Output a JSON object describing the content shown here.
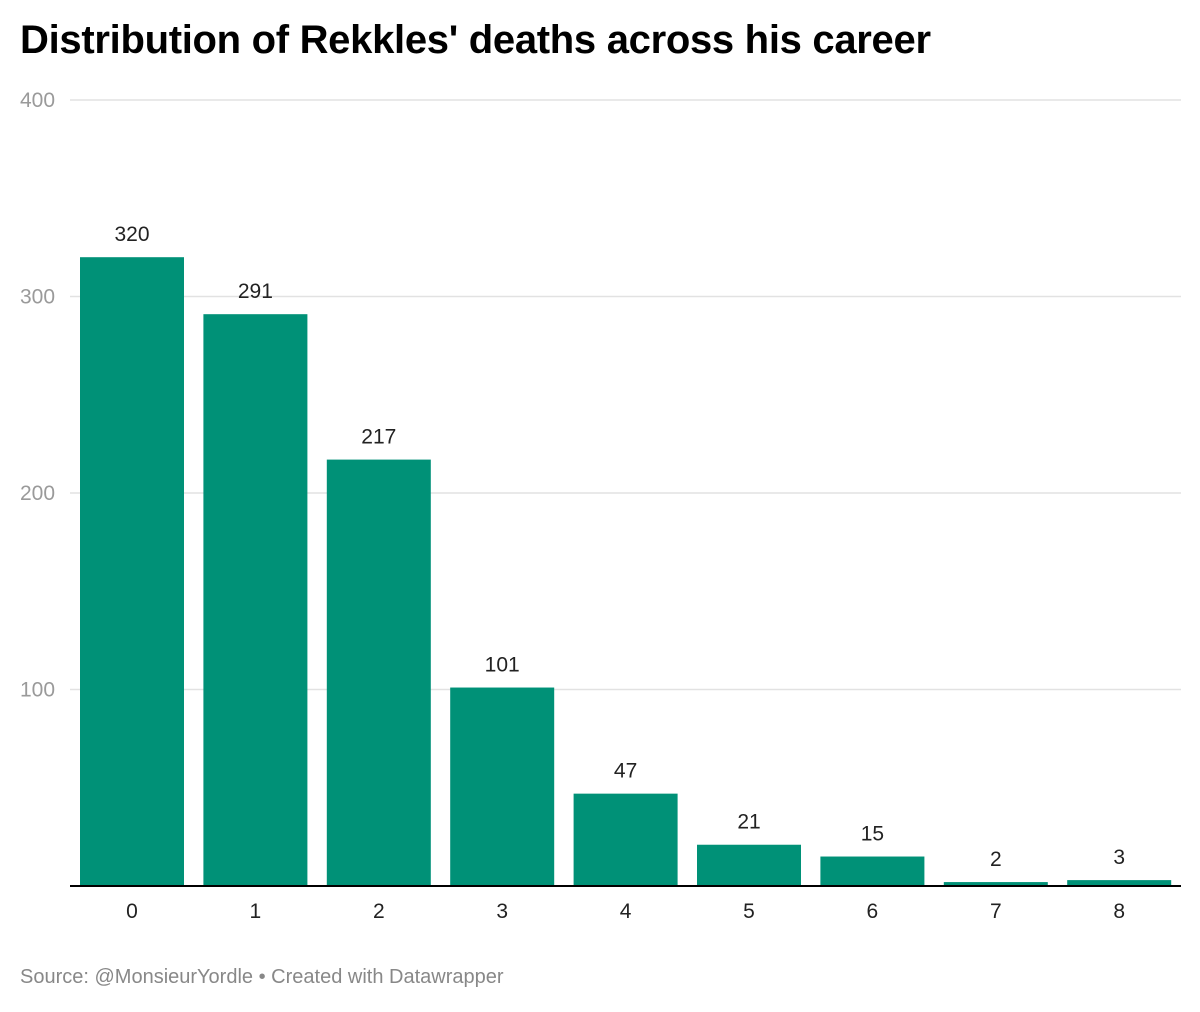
{
  "title": "Distribution of Rekkles' deaths across his career",
  "footer": {
    "source": "Source: @MonsieurYordle",
    "separator": "•",
    "credit": "Created with Datawrapper"
  },
  "colors": {
    "bar": "#009177",
    "grid": "#e2e2e2",
    "axis": "#000000"
  },
  "chart_data": {
    "type": "bar",
    "title": "Distribution of Rekkles' deaths across his career",
    "xlabel": "",
    "ylabel": "",
    "categories": [
      "0",
      "1",
      "2",
      "3",
      "4",
      "5",
      "6",
      "7",
      "8"
    ],
    "values": [
      320,
      291,
      217,
      101,
      47,
      21,
      15,
      2,
      3
    ],
    "ylim": [
      0,
      400
    ],
    "yticks": [
      100,
      200,
      300,
      400
    ],
    "grid": true,
    "legend": "none",
    "data_labels": true
  }
}
